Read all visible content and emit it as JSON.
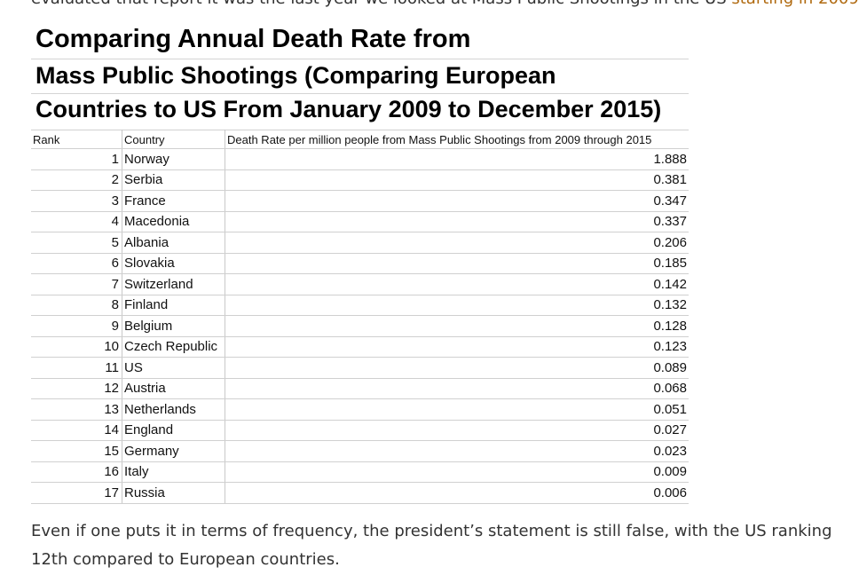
{
  "top_text": {
    "prefix": "evaluated that report it was the last year we looked at Mass Public Shootings in the US ",
    "link": "starting in 2009"
  },
  "table": {
    "title_lines": [
      "Comparing Annual Death Rate from",
      "Mass Public Shootings (Comparing European",
      "Countries to US From January 2009 to December 2015)"
    ],
    "headers": {
      "rank": "Rank",
      "country": "Country",
      "rate": "Death Rate per million people from Mass Public Shootings from 2009 through 2015"
    },
    "rows": [
      {
        "rank": "1",
        "country": "Norway",
        "rate": "1.888"
      },
      {
        "rank": "2",
        "country": "Serbia",
        "rate": "0.381"
      },
      {
        "rank": "3",
        "country": "France",
        "rate": "0.347"
      },
      {
        "rank": "4",
        "country": "Macedonia",
        "rate": "0.337"
      },
      {
        "rank": "5",
        "country": "Albania",
        "rate": "0.206"
      },
      {
        "rank": "6",
        "country": "Slovakia",
        "rate": "0.185"
      },
      {
        "rank": "7",
        "country": "Switzerland",
        "rate": "0.142"
      },
      {
        "rank": "8",
        "country": "Finland",
        "rate": "0.132"
      },
      {
        "rank": "9",
        "country": "Belgium",
        "rate": "0.128"
      },
      {
        "rank": "10",
        "country": "Czech Republic",
        "rate": "0.123"
      },
      {
        "rank": "11",
        "country": "US",
        "rate": "0.089"
      },
      {
        "rank": "12",
        "country": "Austria",
        "rate": "0.068"
      },
      {
        "rank": "13",
        "country": "Netherlands",
        "rate": "0.051"
      },
      {
        "rank": "14",
        "country": "England",
        "rate": "0.027"
      },
      {
        "rank": "15",
        "country": "Germany",
        "rate": "0.023"
      },
      {
        "rank": "16",
        "country": "Italy",
        "rate": "0.009"
      },
      {
        "rank": "17",
        "country": "Russia",
        "rate": "0.006"
      }
    ]
  },
  "bottom_text": "Even if one puts it in terms of frequency, the president’s statement is still false, with the US ranking 12th compared to European countries.",
  "colors": {
    "link": "#b06a10",
    "body_text": "#333333",
    "grid_line": "#d0d0d0"
  }
}
